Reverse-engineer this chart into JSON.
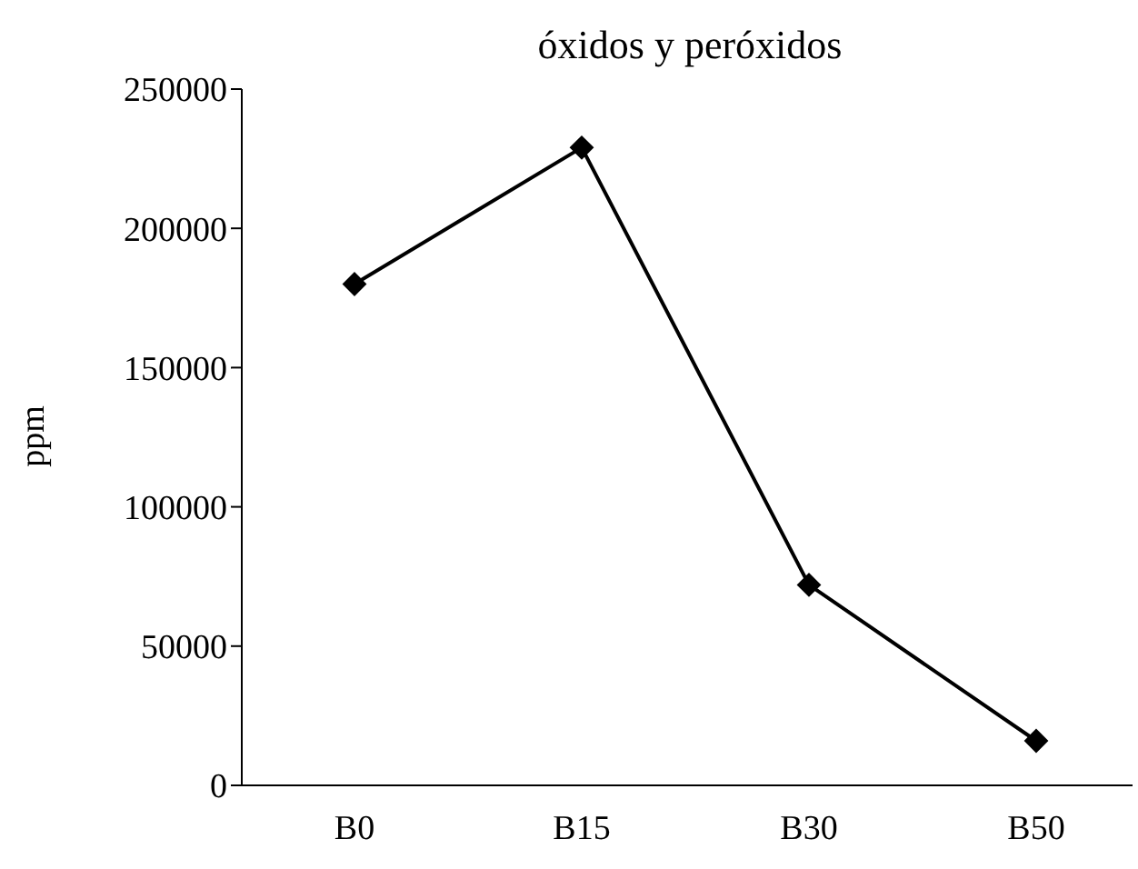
{
  "chart_data": {
    "type": "line",
    "title": "óxidos y peróxidos",
    "ylabel": "ppm",
    "categories": [
      "B0",
      "B15",
      "B30",
      "B50"
    ],
    "series": [
      {
        "color": "#000000",
        "values": [
          180000,
          229000,
          72000,
          16000
        ]
      }
    ],
    "ylim": [
      0,
      250000
    ],
    "yticks": [
      0,
      50000,
      100000,
      150000,
      200000,
      250000
    ],
    "marker": "diamond",
    "line_style": "solid",
    "grid": false,
    "legend": false
  }
}
